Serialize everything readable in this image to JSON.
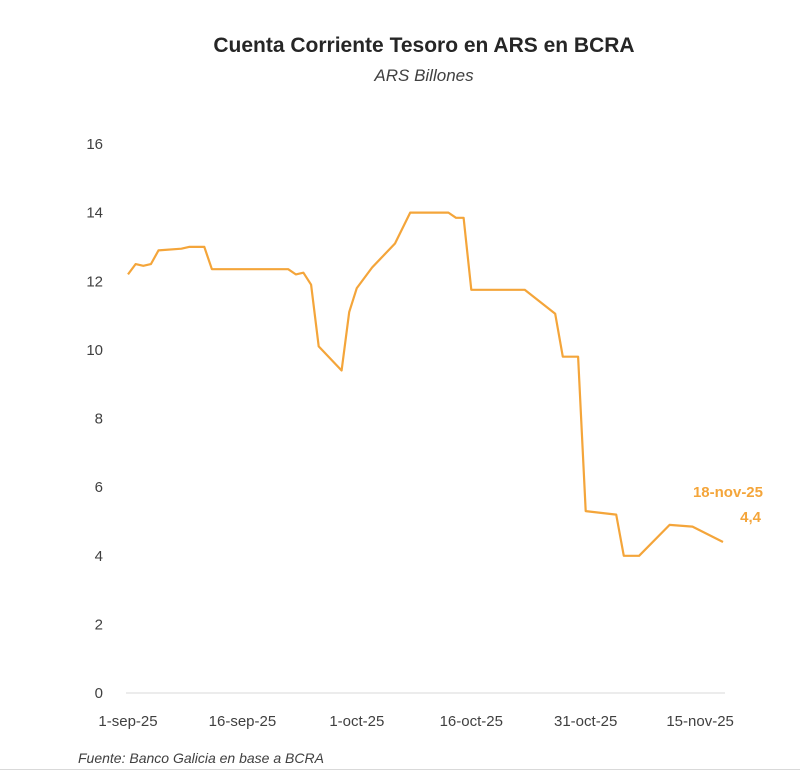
{
  "chart_data": {
    "type": "line",
    "title": "Cuenta Corriente Tesoro en ARS en BCRA",
    "subtitle": "ARS Billones",
    "source": "Fuente: Banco Galicia en base a BCRA",
    "ylim": [
      0,
      16
    ],
    "y_ticks": [
      "0",
      "2",
      "4",
      "6",
      "8",
      "10",
      "12",
      "14",
      "16"
    ],
    "x_ticks": [
      {
        "date": "2025-09-01",
        "label": "1-sep-25"
      },
      {
        "date": "2025-09-16",
        "label": "16-sep-25"
      },
      {
        "date": "2025-10-01",
        "label": "1-oct-25"
      },
      {
        "date": "2025-10-16",
        "label": "16-oct-25"
      },
      {
        "date": "2025-10-31",
        "label": "31-oct-25"
      },
      {
        "date": "2025-11-15",
        "label": "15-nov-25"
      }
    ],
    "xlim": [
      "2025-09-01",
      "2025-11-18"
    ],
    "grid": false,
    "line_color": "#F4A53A",
    "series": [
      {
        "name": "",
        "points": [
          {
            "x": "2025-09-01",
            "y": 12.2
          },
          {
            "x": "2025-09-02",
            "y": 12.5
          },
          {
            "x": "2025-09-03",
            "y": 12.45
          },
          {
            "x": "2025-09-04",
            "y": 12.5
          },
          {
            "x": "2025-09-05",
            "y": 12.9
          },
          {
            "x": "2025-09-08",
            "y": 12.95
          },
          {
            "x": "2025-09-09",
            "y": 13.0
          },
          {
            "x": "2025-09-11",
            "y": 13.0
          },
          {
            "x": "2025-09-12",
            "y": 12.35
          },
          {
            "x": "2025-09-22",
            "y": 12.35
          },
          {
            "x": "2025-09-23",
            "y": 12.2
          },
          {
            "x": "2025-09-24",
            "y": 12.25
          },
          {
            "x": "2025-09-25",
            "y": 11.9
          },
          {
            "x": "2025-09-26",
            "y": 10.1
          },
          {
            "x": "2025-09-29",
            "y": 9.4
          },
          {
            "x": "2025-09-30",
            "y": 11.1
          },
          {
            "x": "2025-10-01",
            "y": 11.8
          },
          {
            "x": "2025-10-03",
            "y": 12.4
          },
          {
            "x": "2025-10-06",
            "y": 13.1
          },
          {
            "x": "2025-10-08",
            "y": 14.0
          },
          {
            "x": "2025-10-13",
            "y": 14.0
          },
          {
            "x": "2025-10-14",
            "y": 13.85
          },
          {
            "x": "2025-10-15",
            "y": 13.85
          },
          {
            "x": "2025-10-16",
            "y": 11.75
          },
          {
            "x": "2025-10-23",
            "y": 11.75
          },
          {
            "x": "2025-10-27",
            "y": 11.05
          },
          {
            "x": "2025-10-28",
            "y": 9.8
          },
          {
            "x": "2025-10-30",
            "y": 9.8
          },
          {
            "x": "2025-10-31",
            "y": 5.3
          },
          {
            "x": "2025-11-04",
            "y": 5.2
          },
          {
            "x": "2025-11-05",
            "y": 4.0
          },
          {
            "x": "2025-11-07",
            "y": 4.0
          },
          {
            "x": "2025-11-11",
            "y": 4.9
          },
          {
            "x": "2025-11-14",
            "y": 4.85
          },
          {
            "x": "2025-11-18",
            "y": 4.4
          }
        ]
      }
    ],
    "annotation": {
      "date_label": "18-nov-25",
      "value_label": "4,4"
    }
  }
}
